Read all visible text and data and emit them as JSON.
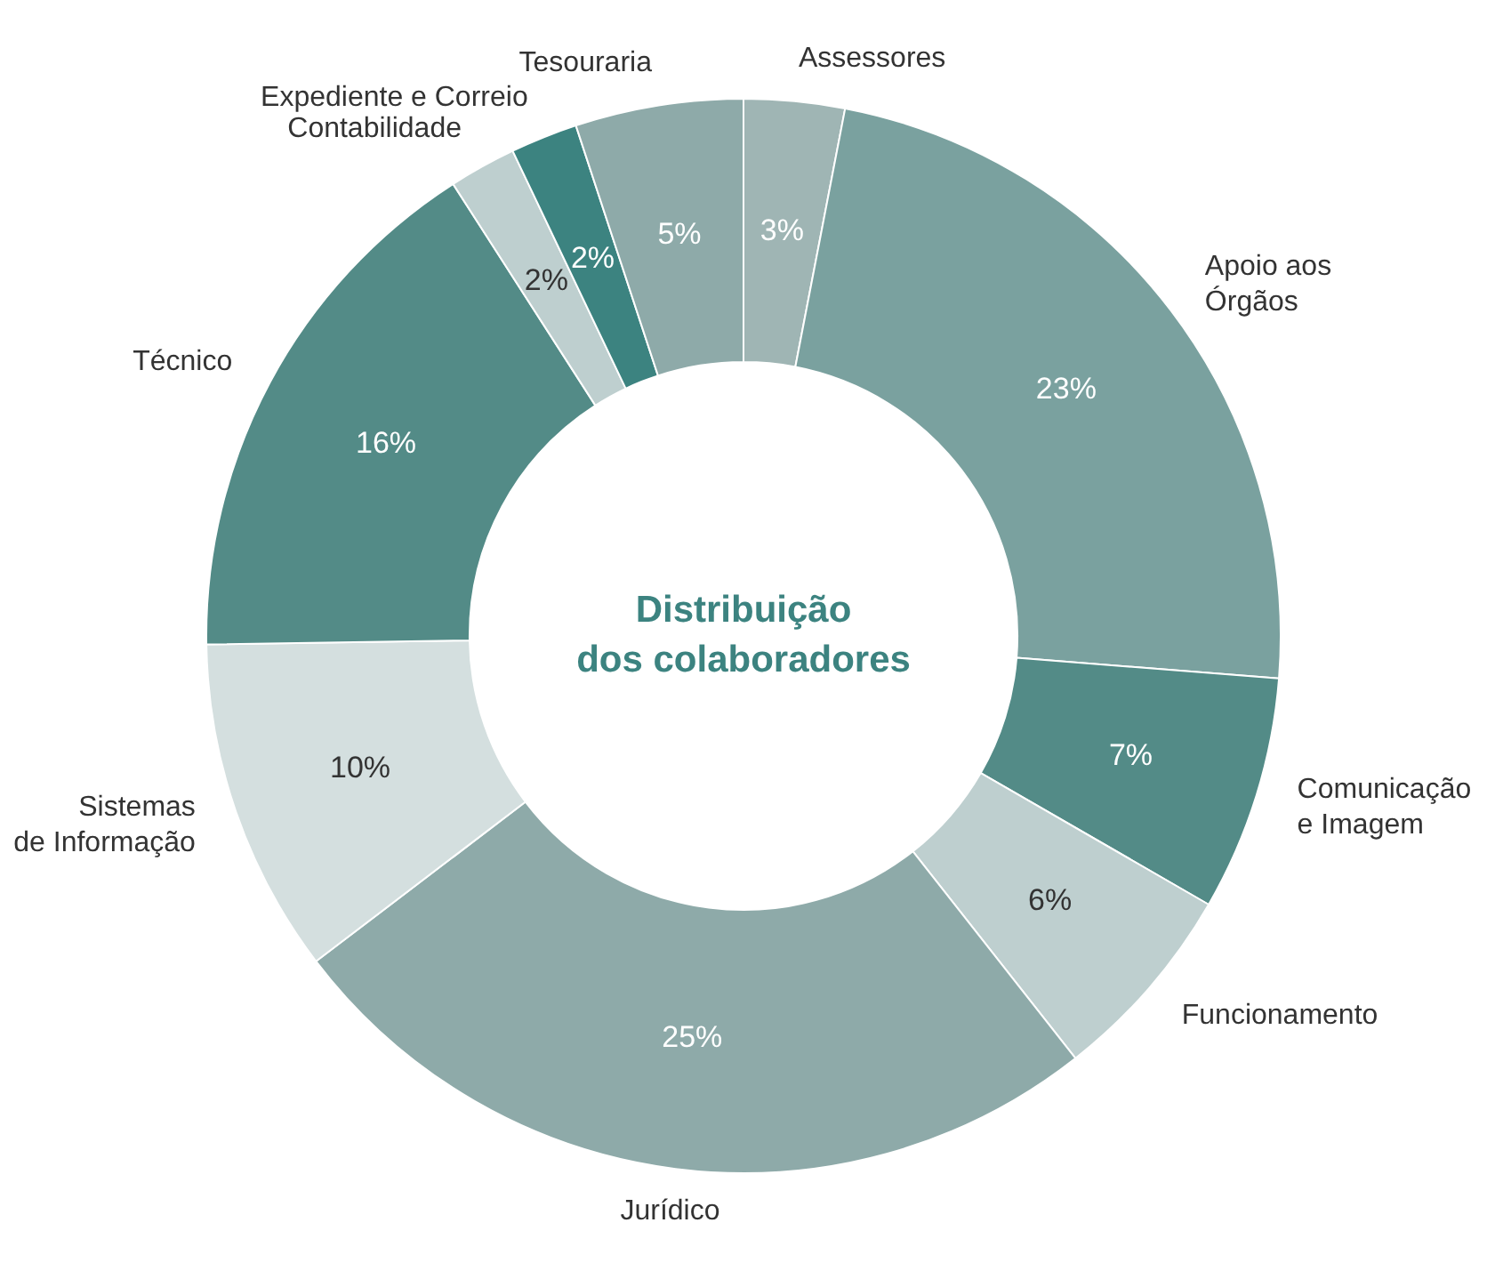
{
  "chart_data": {
    "type": "donut",
    "title": "Distribuição\ndos colaboradores",
    "categories": [
      "Assessores",
      "Apoio aos\nÓrgãos",
      "Comunicação\ne Imagem",
      "Funcionamento",
      "Jurídico",
      "Sistemas\nde Informação",
      "Técnico",
      "Contabilidade",
      "Expediente e Correio",
      "Tesouraria"
    ],
    "values": [
      3,
      23,
      7,
      6,
      25,
      10,
      16,
      2,
      2,
      5
    ],
    "value_labels": [
      "3%",
      "23%",
      "7%",
      "6%",
      "25%",
      "10%",
      "16%",
      "2%",
      "2%",
      "5%"
    ],
    "colors": [
      "#9fb5b4",
      "#7aa19f",
      "#538b87",
      "#becfcf",
      "#8eaaa9",
      "#d4dfdf",
      "#538b87",
      "#becfcf",
      "#3c8380",
      "#8eaaa9"
    ],
    "legend": false
  }
}
